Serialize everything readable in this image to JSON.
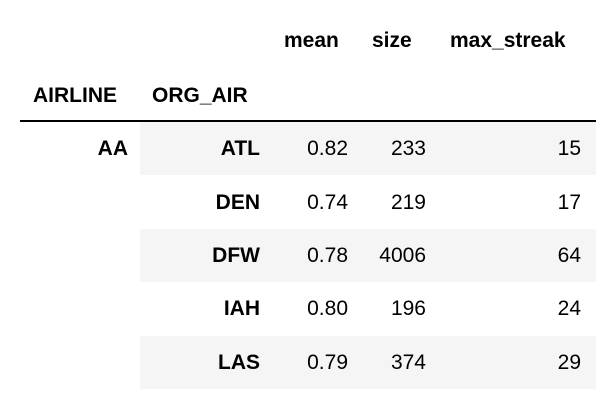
{
  "columns": {
    "mean": "mean",
    "size": "size",
    "max_streak": "max_streak"
  },
  "index_names": {
    "level0": "AIRLINE",
    "level1": "ORG_AIR"
  },
  "airline_group": "AA",
  "rows": [
    {
      "org_air": "ATL",
      "mean": "0.82",
      "size": "233",
      "max_streak": "15"
    },
    {
      "org_air": "DEN",
      "mean": "0.74",
      "size": "219",
      "max_streak": "17"
    },
    {
      "org_air": "DFW",
      "mean": "0.78",
      "size": "4006",
      "max_streak": "64"
    },
    {
      "org_air": "IAH",
      "mean": "0.80",
      "size": "196",
      "max_streak": "24"
    },
    {
      "org_air": "LAS",
      "mean": "0.79",
      "size": "374",
      "max_streak": "29"
    }
  ]
}
